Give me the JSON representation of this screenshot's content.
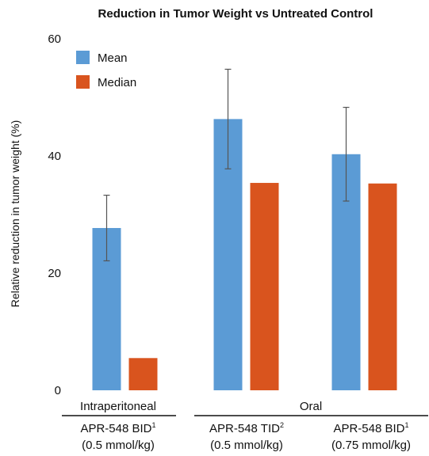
{
  "chart_data": {
    "type": "bar",
    "title": "Reduction in Tumor Weight vs Untreated Control",
    "ylabel": "Relative reduction in tumor weight (%)",
    "xlabel": "",
    "ylim": [
      0,
      60
    ],
    "yticks": [
      0,
      20,
      40,
      60
    ],
    "grid": false,
    "legend_position": "top-left",
    "routes": [
      {
        "label": "Intraperitoneal"
      },
      {
        "label": "Oral"
      }
    ],
    "categories": [
      {
        "line1": "APR-548 BID",
        "sup": "1",
        "line2": "(0.5 mmol/kg)"
      },
      {
        "line1": "APR-548 TID",
        "sup": "2",
        "line2": "(0.5 mmol/kg)"
      },
      {
        "line1": "APR-548 BID",
        "sup": "1",
        "line2": "(0.75 mmol/kg)"
      }
    ],
    "series": [
      {
        "name": "Mean",
        "color": "#5b9bd5",
        "values": [
          27.7,
          46.3,
          40.3
        ],
        "error": [
          5.6,
          8.5,
          8.0
        ]
      },
      {
        "name": "Median",
        "color": "#d9541e",
        "values": [
          5.5,
          35.4,
          35.3
        ]
      }
    ],
    "error_bar_color": "#555555"
  }
}
